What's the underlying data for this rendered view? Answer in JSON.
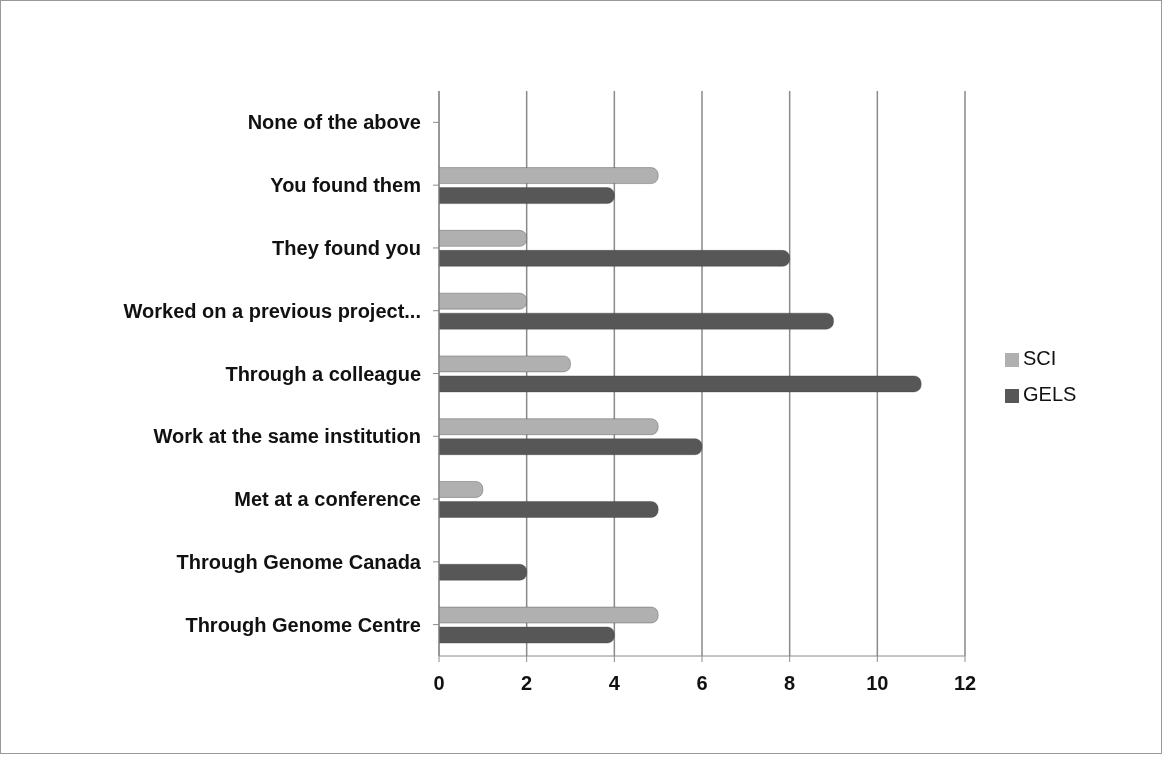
{
  "chart_data": {
    "type": "bar",
    "orientation": "horizontal",
    "categories": [
      "None of the above",
      "You found them",
      "They found you",
      "Worked on a previous project...",
      "Through a colleague",
      "Work at the same institution",
      "Met at a conference",
      "Through Genome Canada",
      "Through Genome Centre"
    ],
    "series": [
      {
        "name": "SCI",
        "color": "#b0b0b0",
        "values": [
          0,
          5,
          2,
          2,
          3,
          5,
          1,
          0,
          5
        ]
      },
      {
        "name": "GELS",
        "color": "#575757",
        "values": [
          0,
          4,
          8,
          9,
          11,
          6,
          5,
          2,
          4
        ]
      }
    ],
    "xlim": [
      0,
      12
    ],
    "xticks": [
      0,
      2,
      4,
      6,
      8,
      10,
      12
    ],
    "grid": "x",
    "legend": "right"
  }
}
